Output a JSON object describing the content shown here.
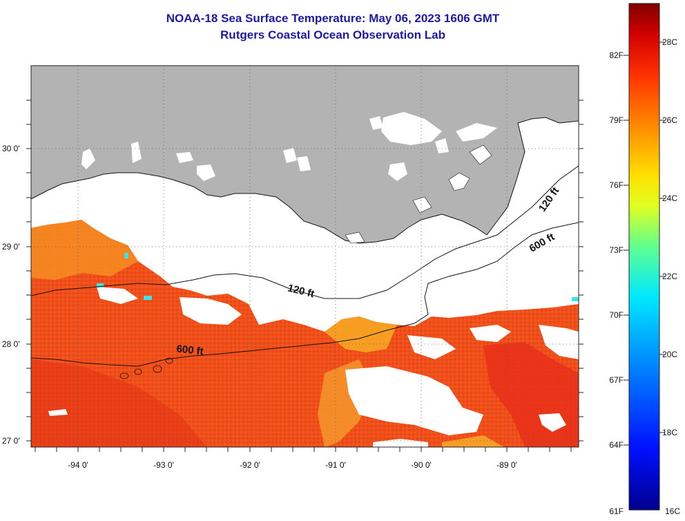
{
  "header": {
    "title": "NOAA-18 Sea Surface Temperature:  May 06, 2023 1606 GMT",
    "subtitle": "Rutgers Coastal Ocean Observation Lab"
  },
  "map": {
    "lat_labels": [
      "30 0'",
      "29 0'",
      "28 0'",
      "27 0'"
    ],
    "lon_labels": [
      "-94 0'",
      "-93 0'",
      "-92 0'",
      "-91 0'",
      "-90 0'",
      "-89 0'"
    ],
    "contours": [
      "120 ft",
      "600 ft",
      "120 ft",
      "600 ft"
    ],
    "colors": {
      "land": "#b3b3b3",
      "cloud": "#ffffff",
      "sst_warm": "#f04018",
      "sst_mid": "#f58220"
    }
  },
  "colorbar": {
    "fahrenheit_labels": [
      "82F",
      "79F",
      "76F",
      "73F",
      "70F",
      "67F",
      "64F",
      "61F"
    ],
    "celsius_labels": [
      "28C",
      "26C",
      "24C",
      "22C",
      "20C",
      "18C",
      "16C"
    ],
    "colors": [
      "#00008c",
      "#0000ff",
      "#00a0ff",
      "#00ffff",
      "#a0ff60",
      "#ffff00",
      "#ffa000",
      "#ff4000",
      "#d00000",
      "#800000"
    ]
  }
}
